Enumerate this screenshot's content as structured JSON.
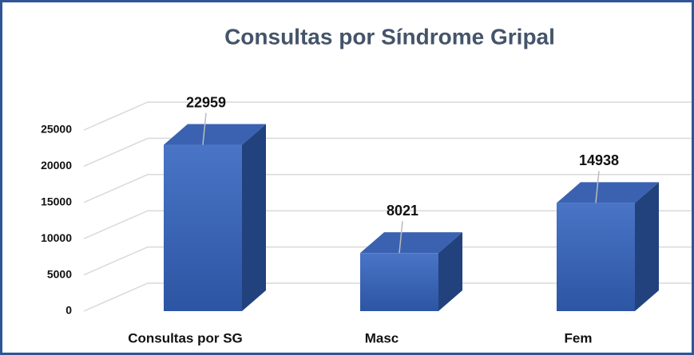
{
  "chart_data": {
    "type": "bar",
    "title": "Consultas por Síndrome Gripal",
    "categories": [
      "Consultas por SG",
      "Masc",
      "Fem"
    ],
    "values": [
      22959,
      8021,
      14938
    ],
    "color": "#3f68bd",
    "ylim": [
      0,
      25000
    ],
    "yticks": [
      0,
      5000,
      10000,
      15000,
      20000,
      25000
    ],
    "grid": true
  }
}
